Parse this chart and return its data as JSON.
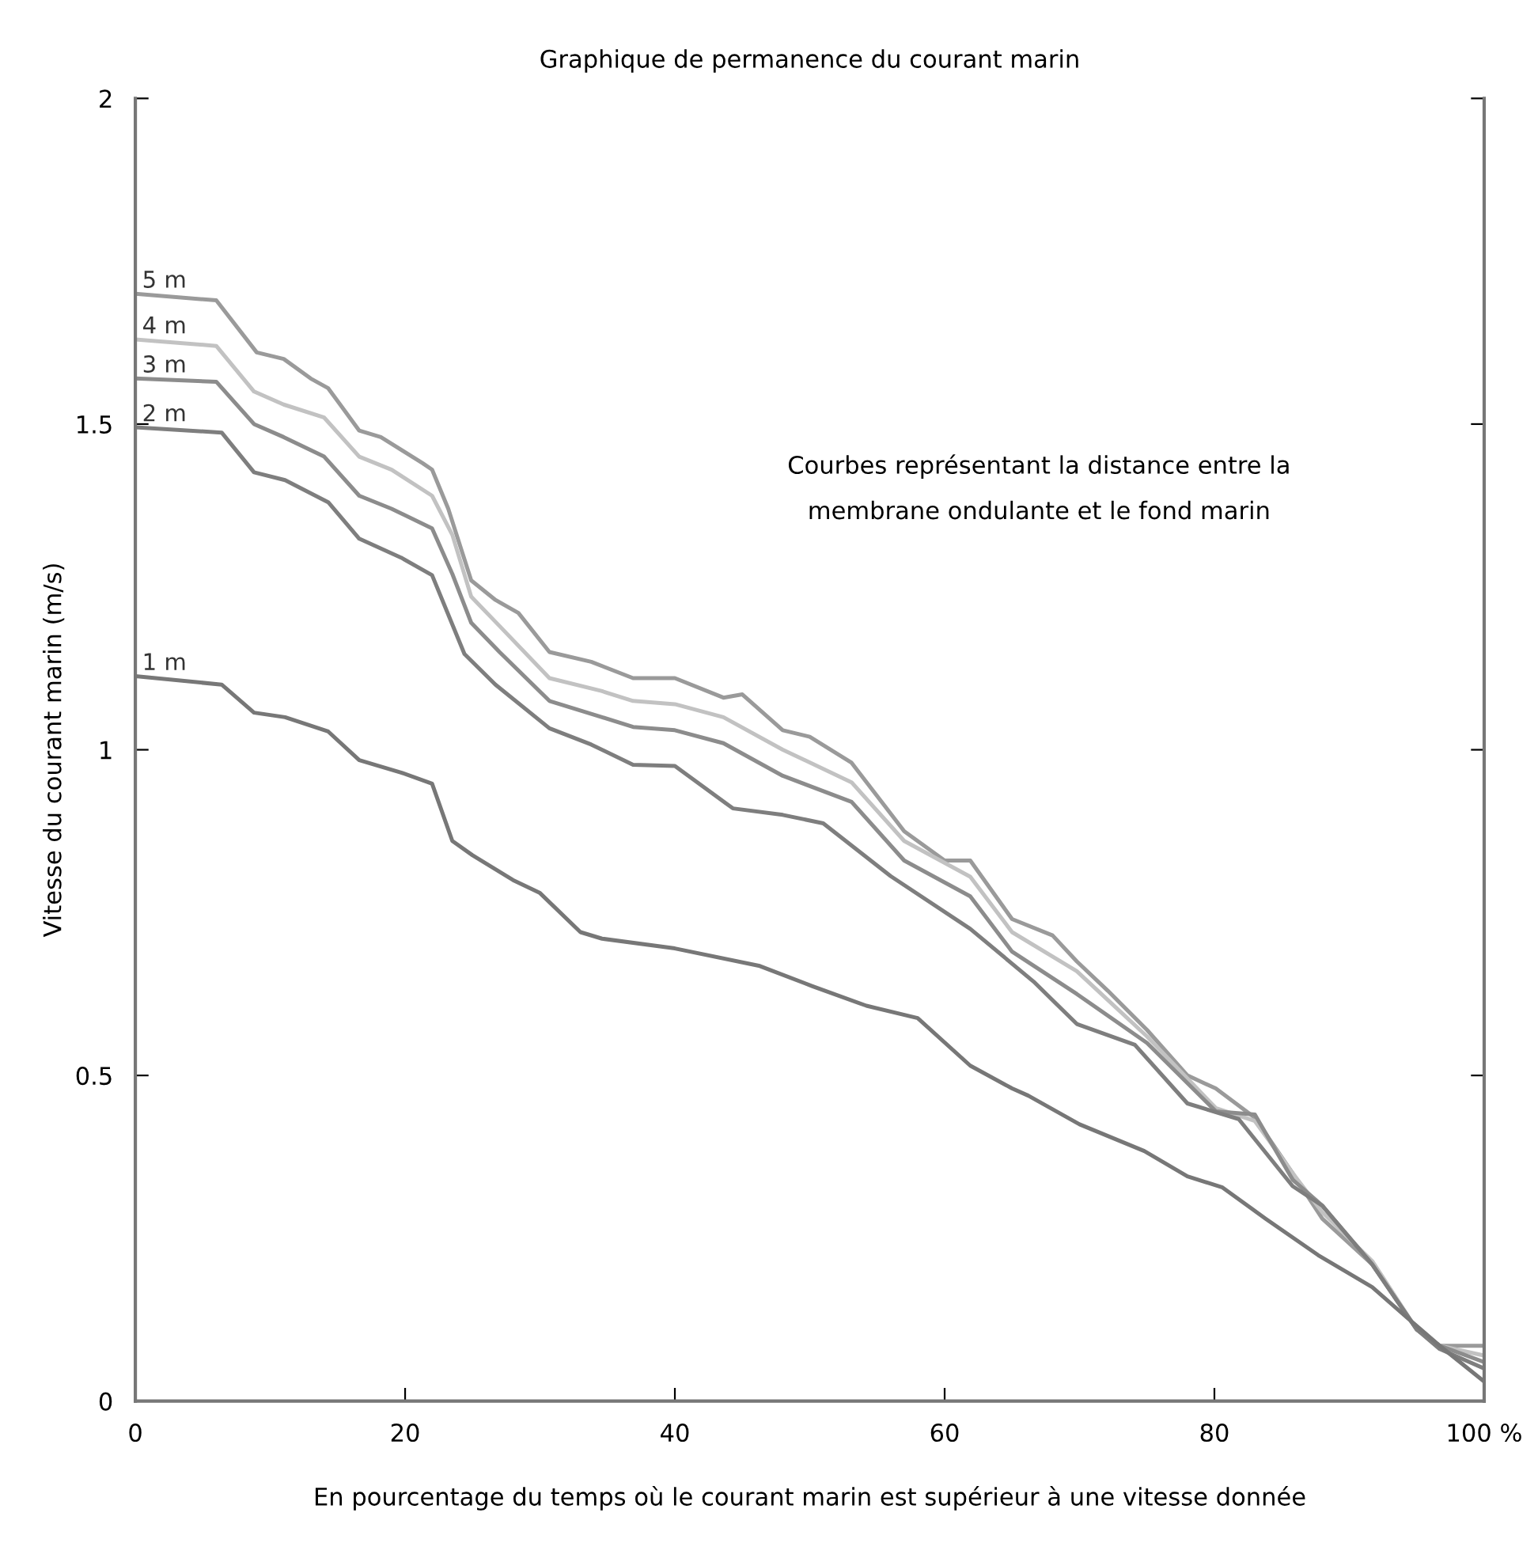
{
  "chart_data": {
    "type": "line",
    "title": "Graphique de permanence du courant marin",
    "xlabel": "En pourcentage du temps où le courant marin est supérieur à une vitesse donnée",
    "ylabel": "Vitesse du courant marin (m/s)",
    "xlim": [
      0,
      100
    ],
    "ylim": [
      0,
      2
    ],
    "xticks": [
      0,
      20,
      40,
      60,
      80,
      {
        "value": 100,
        "label": "100 %"
      }
    ],
    "yticks": [
      0,
      0.5,
      1,
      1.5,
      2
    ],
    "grid": false,
    "legend": false,
    "marker": "none",
    "line_style": "solid",
    "annotations": [
      "Courbes représentant la distance entre la\nmembrane ondulante et le fond marin"
    ],
    "series": [
      {
        "name": "5 m",
        "color": "#9a9a9a",
        "x": [
          0,
          6,
          9,
          11,
          13,
          14.3,
          16.6,
          18.2,
          21.3,
          22,
          23.2,
          24.9,
          26.7,
          28.4,
          30.7,
          33.8,
          36.9,
          40,
          43.6,
          45,
          48,
          50,
          53.1,
          57,
          60,
          61.9,
          65,
          68,
          69.8,
          72.1,
          75,
          78,
          80.1,
          83,
          85.8,
          88,
          91.7,
          95,
          96.7,
          100
        ],
        "values": [
          1.7,
          1.69,
          1.61,
          1.6,
          1.57,
          1.555,
          1.49,
          1.48,
          1.44,
          1.43,
          1.37,
          1.26,
          1.23,
          1.21,
          1.15,
          1.135,
          1.11,
          1.11,
          1.08,
          1.085,
          1.03,
          1.02,
          0.98,
          0.875,
          0.83,
          0.83,
          0.74,
          0.715,
          0.675,
          0.63,
          0.57,
          0.5,
          0.48,
          0.435,
          0.35,
          0.28,
          0.21,
          0.11,
          0.085,
          0.085
        ]
      },
      {
        "name": "4 m",
        "color": "#c2c2c2",
        "x": [
          0,
          6,
          8.8,
          11,
          14,
          16.6,
          19,
          22,
          23.5,
          24.9,
          27,
          30.7,
          34.6,
          36.9,
          40,
          43.6,
          48,
          53.1,
          57,
          61.9,
          65,
          69.8,
          75,
          80.1,
          83,
          85.8,
          88,
          91.7,
          95,
          96.7,
          100
        ],
        "values": [
          1.63,
          1.62,
          1.55,
          1.53,
          1.51,
          1.45,
          1.43,
          1.39,
          1.33,
          1.235,
          1.19,
          1.11,
          1.09,
          1.075,
          1.07,
          1.05,
          1.0,
          0.95,
          0.86,
          0.805,
          0.72,
          0.66,
          0.56,
          0.45,
          0.43,
          0.35,
          0.29,
          0.215,
          0.11,
          0.085,
          0.07
        ]
      },
      {
        "name": "3 m",
        "color": "#8c8c8c",
        "x": [
          0,
          6,
          8.8,
          11,
          14,
          16.6,
          19,
          22,
          23.5,
          24.9,
          27,
          30.7,
          34.6,
          36.9,
          40,
          43.6,
          48,
          53.1,
          57,
          61.9,
          65,
          69.8,
          75,
          80.1,
          83,
          85.8,
          88,
          91.7,
          95,
          96.7,
          100
        ],
        "values": [
          1.57,
          1.565,
          1.5,
          1.48,
          1.45,
          1.39,
          1.37,
          1.34,
          1.27,
          1.195,
          1.15,
          1.075,
          1.05,
          1.035,
          1.03,
          1.01,
          0.96,
          0.92,
          0.83,
          0.775,
          0.69,
          0.625,
          0.55,
          0.445,
          0.44,
          0.34,
          0.3,
          0.21,
          0.11,
          0.085,
          0.06
        ]
      },
      {
        "name": "2 m",
        "color": "#7e7e7e",
        "x": [
          0,
          6.4,
          8.8,
          11.1,
          14.3,
          16.6,
          19.7,
          22,
          24.4,
          26.7,
          30.7,
          33.8,
          36.9,
          40,
          44.3,
          48,
          51,
          56,
          61.9,
          66.6,
          69.8,
          74.1,
          78,
          81.8,
          85.8,
          88,
          91.7,
          95,
          96.7,
          100
        ],
        "values": [
          1.495,
          1.487,
          1.426,
          1.414,
          1.38,
          1.324,
          1.295,
          1.268,
          1.147,
          1.1,
          1.033,
          1.008,
          0.977,
          0.975,
          0.91,
          0.9,
          0.887,
          0.806,
          0.725,
          0.644,
          0.579,
          0.547,
          0.457,
          0.433,
          0.33,
          0.3,
          0.21,
          0.11,
          0.08,
          0.05
        ]
      },
      {
        "name": "1 m",
        "color": "#777777",
        "x": [
          0,
          6.4,
          8.8,
          11.1,
          14.3,
          16.6,
          19.7,
          22,
          23.5,
          25,
          28,
          30,
          33,
          34.6,
          40,
          46.3,
          50.2,
          54.2,
          58,
          61.9,
          65,
          66.2,
          70,
          74.8,
          78,
          80.6,
          83.8,
          87.7,
          91.7,
          94.4,
          96.7,
          100
        ],
        "values": [
          1.113,
          1.1,
          1.057,
          1.05,
          1.028,
          0.984,
          0.965,
          0.948,
          0.86,
          0.838,
          0.8,
          0.78,
          0.72,
          0.71,
          0.695,
          0.668,
          0.637,
          0.607,
          0.588,
          0.515,
          0.48,
          0.469,
          0.425,
          0.384,
          0.345,
          0.328,
          0.28,
          0.224,
          0.175,
          0.126,
          0.085,
          0.03
        ]
      }
    ]
  }
}
